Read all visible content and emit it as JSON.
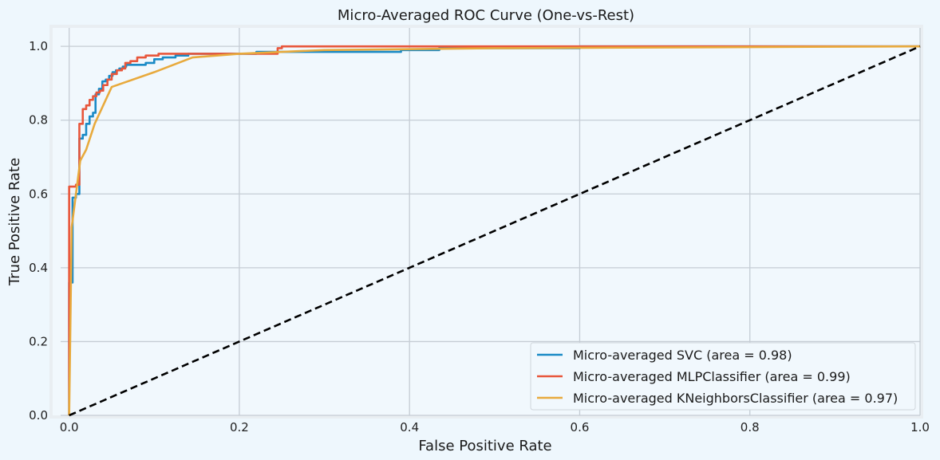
{
  "chart_data": {
    "type": "line",
    "title": "Micro-Averaged ROC Curve (One-vs-Rest)",
    "xlabel": "False Positive Rate",
    "ylabel": "True Positive Rate",
    "xlim": [
      -0.01,
      1.0
    ],
    "ylim": [
      0.0,
      1.05
    ],
    "x_ticks": [
      0.0,
      0.2,
      0.4,
      0.6,
      0.8,
      1.0
    ],
    "x_tick_labels": [
      "0.0",
      "0.2",
      "0.4",
      "0.6",
      "0.8",
      "1.0"
    ],
    "y_ticks": [
      0.0,
      0.2,
      0.4,
      0.6,
      0.8,
      1.0
    ],
    "y_tick_labels": [
      "0.0",
      "0.2",
      "0.4",
      "0.6",
      "0.8",
      "1.0"
    ],
    "grid": true,
    "legend_position": "bottom-right",
    "background_color": "#eef7fd",
    "grid_color": "#c5ccd4",
    "series": [
      {
        "name": "Micro-averaged SVC (area = 0.98)",
        "color": "#1a8ac6",
        "points": [
          [
            0,
            0
          ],
          [
            0,
            0.36
          ],
          [
            0.004,
            0.36
          ],
          [
            0.004,
            0.59
          ],
          [
            0.008,
            0.59
          ],
          [
            0.008,
            0.6
          ],
          [
            0.012,
            0.6
          ],
          [
            0.012,
            0.75
          ],
          [
            0.016,
            0.75
          ],
          [
            0.016,
            0.76
          ],
          [
            0.02,
            0.76
          ],
          [
            0.02,
            0.79
          ],
          [
            0.024,
            0.79
          ],
          [
            0.024,
            0.81
          ],
          [
            0.028,
            0.81
          ],
          [
            0.028,
            0.82
          ],
          [
            0.031,
            0.82
          ],
          [
            0.031,
            0.87
          ],
          [
            0.035,
            0.87
          ],
          [
            0.035,
            0.885
          ],
          [
            0.039,
            0.885
          ],
          [
            0.039,
            0.905
          ],
          [
            0.043,
            0.905
          ],
          [
            0.043,
            0.91
          ],
          [
            0.047,
            0.91
          ],
          [
            0.047,
            0.92
          ],
          [
            0.051,
            0.92
          ],
          [
            0.051,
            0.93
          ],
          [
            0.055,
            0.93
          ],
          [
            0.055,
            0.935
          ],
          [
            0.059,
            0.935
          ],
          [
            0.059,
            0.94
          ],
          [
            0.063,
            0.94
          ],
          [
            0.063,
            0.945
          ],
          [
            0.067,
            0.945
          ],
          [
            0.067,
            0.95
          ],
          [
            0.09,
            0.95
          ],
          [
            0.09,
            0.955
          ],
          [
            0.1,
            0.955
          ],
          [
            0.1,
            0.965
          ],
          [
            0.11,
            0.965
          ],
          [
            0.11,
            0.97
          ],
          [
            0.125,
            0.97
          ],
          [
            0.125,
            0.975
          ],
          [
            0.14,
            0.975
          ],
          [
            0.14,
            0.98
          ],
          [
            0.22,
            0.98
          ],
          [
            0.22,
            0.985
          ],
          [
            0.39,
            0.985
          ],
          [
            0.39,
            0.99
          ],
          [
            0.435,
            0.99
          ],
          [
            0.435,
            0.995
          ],
          [
            0.6,
            0.995
          ],
          [
            0.6,
            1.0
          ],
          [
            1.0,
            1.0
          ]
        ]
      },
      {
        "name": "Micro-averaged MLPClassifier (area = 0.99)",
        "color": "#e8563b",
        "points": [
          [
            0,
            0
          ],
          [
            0,
            0.52
          ],
          [
            0.0,
            0.62
          ],
          [
            0.008,
            0.62
          ],
          [
            0.008,
            0.625
          ],
          [
            0.012,
            0.625
          ],
          [
            0.012,
            0.79
          ],
          [
            0.016,
            0.79
          ],
          [
            0.016,
            0.83
          ],
          [
            0.02,
            0.83
          ],
          [
            0.02,
            0.84
          ],
          [
            0.024,
            0.84
          ],
          [
            0.024,
            0.855
          ],
          [
            0.028,
            0.855
          ],
          [
            0.028,
            0.865
          ],
          [
            0.032,
            0.865
          ],
          [
            0.032,
            0.875
          ],
          [
            0.036,
            0.875
          ],
          [
            0.036,
            0.88
          ],
          [
            0.04,
            0.88
          ],
          [
            0.04,
            0.895
          ],
          [
            0.045,
            0.895
          ],
          [
            0.045,
            0.91
          ],
          [
            0.05,
            0.91
          ],
          [
            0.05,
            0.925
          ],
          [
            0.056,
            0.925
          ],
          [
            0.056,
            0.935
          ],
          [
            0.062,
            0.935
          ],
          [
            0.062,
            0.94
          ],
          [
            0.066,
            0.94
          ],
          [
            0.066,
            0.955
          ],
          [
            0.072,
            0.955
          ],
          [
            0.072,
            0.96
          ],
          [
            0.08,
            0.96
          ],
          [
            0.08,
            0.97
          ],
          [
            0.09,
            0.97
          ],
          [
            0.09,
            0.975
          ],
          [
            0.105,
            0.975
          ],
          [
            0.105,
            0.98
          ],
          [
            0.245,
            0.98
          ],
          [
            0.245,
            0.995
          ],
          [
            0.25,
            0.995
          ],
          [
            0.25,
            1.0
          ],
          [
            1.0,
            1.0
          ]
        ]
      },
      {
        "name": "Micro-averaged KNeighborsClassifier (area = 0.97)",
        "color": "#e8aa3d",
        "points": [
          [
            0,
            0
          ],
          [
            0.003,
            0.51
          ],
          [
            0.008,
            0.6
          ],
          [
            0.013,
            0.69
          ],
          [
            0.02,
            0.72
          ],
          [
            0.03,
            0.79
          ],
          [
            0.05,
            0.89
          ],
          [
            0.1,
            0.93
          ],
          [
            0.145,
            0.97
          ],
          [
            0.2,
            0.98
          ],
          [
            0.3,
            0.99
          ],
          [
            0.5,
            0.995
          ],
          [
            1.0,
            1.0
          ]
        ]
      },
      {
        "name": "",
        "color": "#000000",
        "dashed": true,
        "points": [
          [
            0,
            0
          ],
          [
            1,
            1
          ]
        ]
      }
    ]
  }
}
